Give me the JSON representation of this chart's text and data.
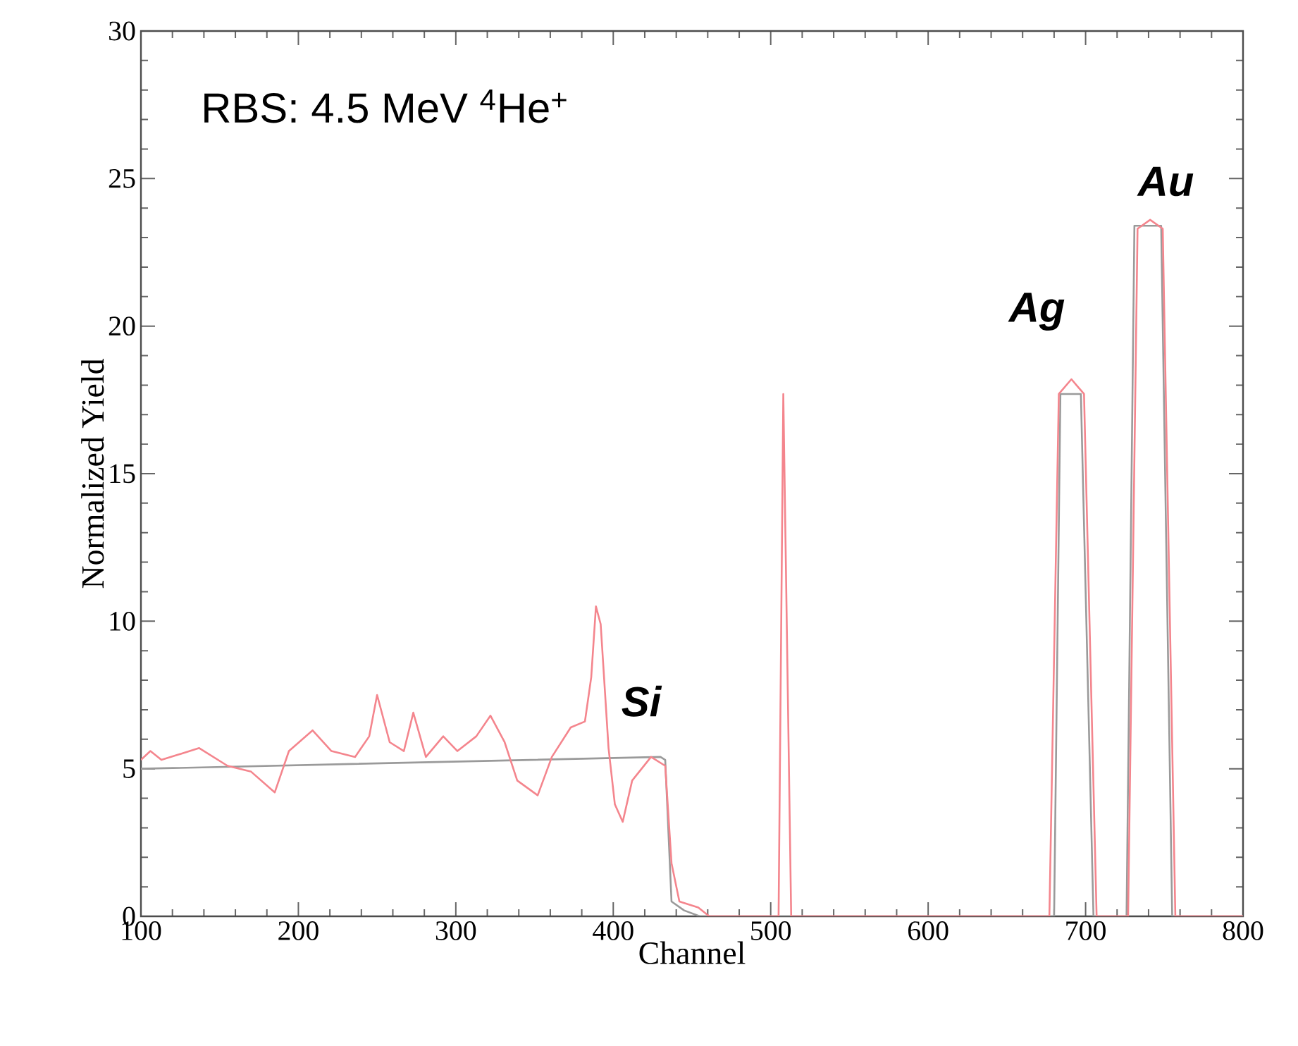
{
  "chart_data": {
    "type": "line",
    "xlabel": "Channel",
    "ylabel": "Normalized Yield",
    "xlim": [
      100,
      800
    ],
    "ylim": [
      0,
      30
    ],
    "xticks": [
      100,
      200,
      300,
      400,
      500,
      600,
      700,
      800
    ],
    "yticks": [
      0,
      5,
      10,
      15,
      20,
      25,
      30
    ],
    "grid": false,
    "marker": "none",
    "line_style": "solid",
    "series": [
      {
        "color": "#9a9a9a",
        "x": [
          100,
          430,
          433,
          437,
          445,
          455,
          680,
          684,
          697,
          705,
          726,
          731,
          748,
          755,
          800
        ],
        "values": [
          5.0,
          5.4,
          5.3,
          0.5,
          0.2,
          0,
          0,
          17.7,
          17.7,
          0,
          0,
          23.4,
          23.4,
          0,
          0
        ]
      },
      {
        "color": "#f4858d",
        "x": [
          100,
          106,
          113,
          125,
          137,
          155,
          170,
          185,
          194,
          209,
          221,
          236,
          245,
          250,
          258,
          267,
          273,
          281,
          292,
          301,
          313,
          322,
          331,
          339,
          352,
          361,
          373,
          382,
          386,
          389,
          392,
          397,
          401,
          406,
          412,
          424,
          433,
          437,
          442,
          454,
          461,
          500,
          505,
          508,
          513,
          600,
          677,
          683,
          691,
          699,
          707,
          727,
          733,
          741,
          749,
          757,
          800
        ],
        "values": [
          5.3,
          5.6,
          5.3,
          5.5,
          5.7,
          5.1,
          4.9,
          4.2,
          5.6,
          6.3,
          5.6,
          5.4,
          6.1,
          7.5,
          5.9,
          5.6,
          6.9,
          5.4,
          6.1,
          5.6,
          6.1,
          6.8,
          5.9,
          4.6,
          4.1,
          5.4,
          6.4,
          6.6,
          8.1,
          10.5,
          9.9,
          5.7,
          3.8,
          3.2,
          4.6,
          5.4,
          5.1,
          1.8,
          0.5,
          0.3,
          0,
          0,
          0,
          17.7,
          0,
          0,
          0,
          17.7,
          18.2,
          17.7,
          0,
          0,
          23.3,
          23.6,
          23.3,
          0,
          0
        ]
      }
    ],
    "annotations": [
      "RBS: 4.5 MeV $^{4}$He$^{+}$",
      "Si",
      "Ag",
      "Au"
    ]
  }
}
